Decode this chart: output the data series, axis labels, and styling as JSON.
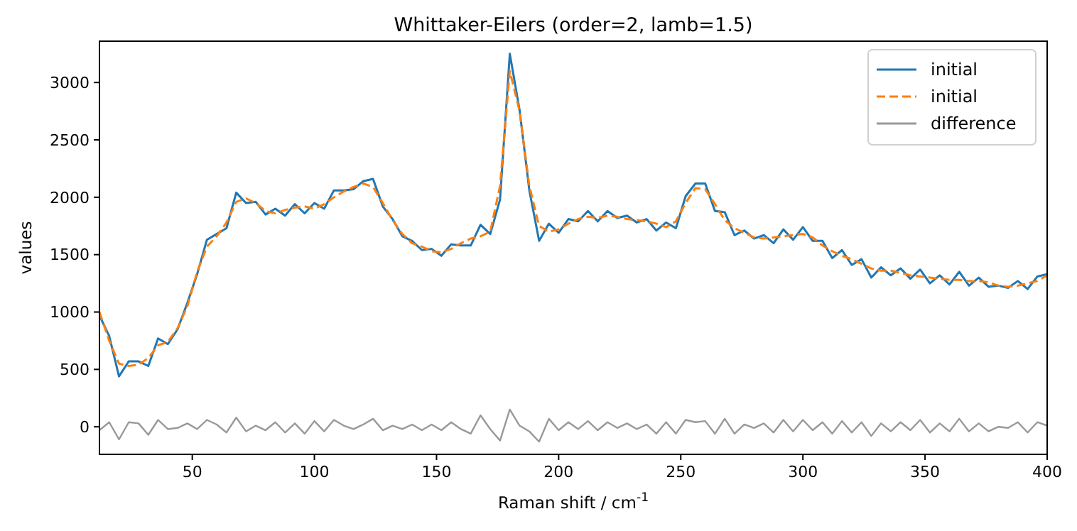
{
  "chart_data": {
    "type": "line",
    "title": "Whittaker-Eilers (order=2, lamb=1.5)",
    "xlabel": "Raman shift / cm$^{-1}$",
    "ylabel": "values",
    "x": [
      12,
      16,
      20,
      24,
      28,
      32,
      36,
      40,
      44,
      48,
      52,
      56,
      60,
      64,
      68,
      72,
      76,
      80,
      84,
      88,
      92,
      96,
      100,
      104,
      108,
      112,
      116,
      120,
      124,
      128,
      132,
      136,
      140,
      144,
      148,
      152,
      156,
      160,
      164,
      168,
      172,
      176,
      180,
      184,
      188,
      192,
      196,
      200,
      204,
      208,
      212,
      216,
      220,
      224,
      228,
      232,
      236,
      240,
      244,
      248,
      252,
      256,
      260,
      264,
      268,
      272,
      276,
      280,
      284,
      288,
      292,
      296,
      300,
      304,
      308,
      312,
      316,
      320,
      324,
      328,
      332,
      336,
      340,
      344,
      348,
      352,
      356,
      360,
      364,
      368,
      372,
      376,
      380,
      384,
      388,
      392,
      396,
      400
    ],
    "series": [
      {
        "name": "initial",
        "color": "#1f77b4",
        "line_style": "solid",
        "values": [
          970,
          790,
          440,
          570,
          570,
          530,
          770,
          720,
          850,
          1080,
          1330,
          1630,
          1680,
          1730,
          2040,
          1950,
          1960,
          1850,
          1900,
          1840,
          1940,
          1860,
          1950,
          1900,
          2060,
          2060,
          2070,
          2140,
          2160,
          1920,
          1810,
          1660,
          1620,
          1540,
          1550,
          1490,
          1590,
          1580,
          1580,
          1760,
          1680,
          1980,
          3250,
          2760,
          2060,
          1620,
          1770,
          1690,
          1810,
          1790,
          1880,
          1790,
          1880,
          1820,
          1840,
          1780,
          1810,
          1710,
          1780,
          1730,
          2010,
          2120,
          2120,
          1880,
          1870,
          1670,
          1710,
          1640,
          1670,
          1600,
          1720,
          1630,
          1740,
          1620,
          1620,
          1470,
          1540,
          1410,
          1460,
          1300,
          1390,
          1320,
          1380,
          1290,
          1370,
          1250,
          1320,
          1240,
          1350,
          1230,
          1300,
          1220,
          1230,
          1210,
          1270,
          1200,
          1310,
          1330
        ]
      },
      {
        "name": "initial",
        "color": "#ff7f0e",
        "line_style": "dashed",
        "values": [
          1000,
          750,
          550,
          530,
          540,
          600,
          710,
          740,
          860,
          1050,
          1350,
          1570,
          1660,
          1780,
          1960,
          1990,
          1950,
          1880,
          1860,
          1890,
          1910,
          1920,
          1900,
          1940,
          2000,
          2050,
          2090,
          2120,
          2090,
          1950,
          1800,
          1680,
          1600,
          1570,
          1530,
          1520,
          1550,
          1600,
          1640,
          1660,
          1700,
          2100,
          3100,
          2750,
          2100,
          1750,
          1700,
          1720,
          1770,
          1810,
          1830,
          1820,
          1840,
          1830,
          1810,
          1800,
          1790,
          1770,
          1740,
          1790,
          1950,
          2080,
          2070,
          1940,
          1800,
          1730,
          1690,
          1650,
          1640,
          1650,
          1660,
          1670,
          1680,
          1650,
          1580,
          1530,
          1490,
          1460,
          1420,
          1380,
          1360,
          1360,
          1340,
          1320,
          1310,
          1300,
          1290,
          1280,
          1280,
          1270,
          1270,
          1260,
          1230,
          1220,
          1230,
          1250,
          1270,
          1320
        ]
      },
      {
        "name": "difference",
        "color": "#999999",
        "line_style": "solid",
        "values": [
          -30,
          40,
          -110,
          40,
          30,
          -70,
          60,
          -20,
          -10,
          30,
          -20,
          60,
          20,
          -50,
          80,
          -40,
          10,
          -30,
          40,
          -50,
          30,
          -60,
          50,
          -40,
          60,
          10,
          -20,
          20,
          70,
          -30,
          10,
          -20,
          20,
          -30,
          20,
          -30,
          40,
          -20,
          -60,
          100,
          -20,
          -120,
          150,
          10,
          -40,
          -130,
          70,
          -30,
          40,
          -20,
          50,
          -30,
          40,
          -10,
          30,
          -20,
          20,
          -60,
          40,
          -60,
          60,
          40,
          50,
          -60,
          70,
          -60,
          20,
          -10,
          30,
          -50,
          60,
          -40,
          60,
          -30,
          40,
          -60,
          50,
          -50,
          40,
          -80,
          30,
          -40,
          40,
          -30,
          60,
          -50,
          30,
          -40,
          70,
          -40,
          30,
          -40,
          0,
          -10,
          40,
          -50,
          40,
          10
        ]
      }
    ],
    "xlim": [
      12,
      400
    ],
    "xticks": [
      50,
      100,
      150,
      200,
      250,
      300,
      350,
      400
    ],
    "ylim": [
      -240,
      3360
    ],
    "yticks": [
      0,
      500,
      1000,
      1500,
      2000,
      2500,
      3000
    ],
    "legend": "top right",
    "grid": false
  }
}
